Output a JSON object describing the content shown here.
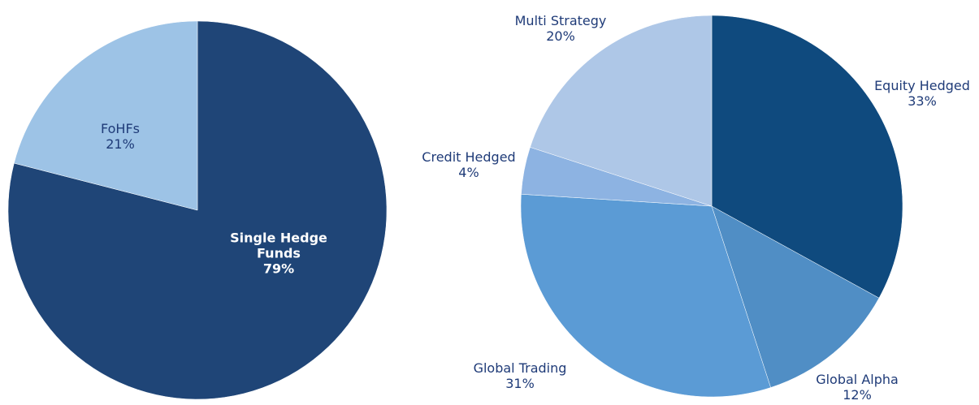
{
  "chart_data": [
    {
      "type": "pie",
      "categories": [
        "Single Hedge Funds",
        "FoHFs"
      ],
      "values": [
        79,
        21
      ],
      "value_labels": [
        "79%",
        "21%"
      ],
      "colors": [
        "#1f4577",
        "#9dc3e6"
      ]
    },
    {
      "type": "pie",
      "categories": [
        "Equity Hedged",
        "Global Alpha",
        "Global Trading",
        "Credit Hedged",
        "Multi Strategy"
      ],
      "values": [
        33,
        12,
        31,
        4,
        20
      ],
      "value_labels": [
        "33%",
        "12%",
        "31%",
        "4%",
        "20%"
      ],
      "colors": [
        "#0f4a7e",
        "#508ec5",
        "#5b9bd5",
        "#8db3e2",
        "#aec7e7"
      ]
    }
  ]
}
